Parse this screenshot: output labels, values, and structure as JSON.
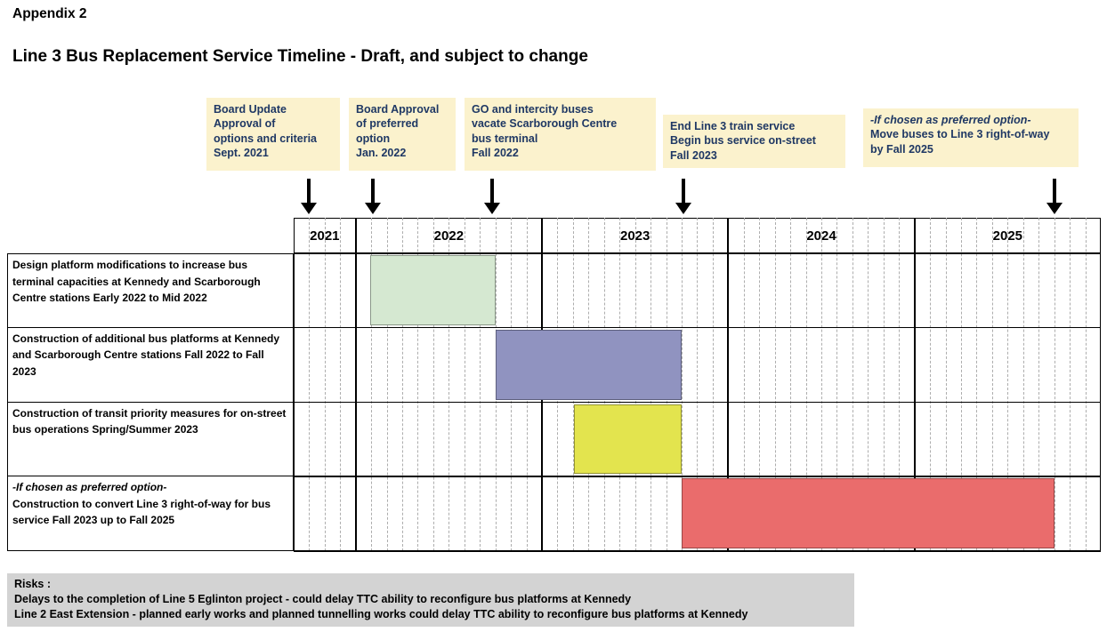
{
  "page": {
    "appendix": "Appendix 2",
    "title": "Line 3 Bus Replacement Service Timeline - Draft, and subject to change"
  },
  "colors": {
    "callout_bg": "#FBF2CD",
    "callout_text": "#1F3864",
    "risks_bg": "#D3D3D3"
  },
  "callouts": [
    {
      "text": "Board Update\nApproval of\noptions and criteria\nSept. 2021"
    },
    {
      "text": "Board Approval\nof preferred\noption\nJan. 2022"
    },
    {
      "text": "GO and intercity buses\nvacate Scarborough Centre\nbus terminal\nFall 2022"
    },
    {
      "text": "End Line 3 train service\nBegin bus service on-street\nFall 2023"
    },
    {
      "italic_line": "-If chosen as preferred option-",
      "text": "Move buses to Line 3 right-of-way\nby Fall 2025"
    }
  ],
  "chart_data": {
    "type": "bar",
    "variant": "gantt-timeline",
    "title": "Line 3 Bus Replacement Service Timeline - Draft, and subject to change",
    "timeline": {
      "start": 2021.667,
      "end": 2026.0,
      "unit": "years",
      "grid": "monthly dashed lines, yearly solid lines"
    },
    "years": [
      "2021",
      "2022",
      "2023",
      "2024",
      "2025"
    ],
    "tasks": [
      {
        "label": "Design platform modifications to increase bus terminal capacities at Kennedy and Scarborough Centre stations Early 2022 to Mid 2022",
        "start_label": "Early 2022",
        "end_label": "Mid 2022",
        "start": 2022.08,
        "end": 2022.75,
        "color": "#D5E8D1"
      },
      {
        "label": "Construction of additional bus platforms at Kennedy and Scarborough Centre stations Fall 2022 to Fall 2023",
        "start_label": "Fall 2022",
        "end_label": "Fall 2023",
        "start": 2022.75,
        "end": 2023.75,
        "color": "#9093C0"
      },
      {
        "label": "Construction of transit priority measures for on-street bus operations Spring/Summer 2023",
        "start_label": "Spring 2023",
        "end_label": "Summer 2023",
        "start": 2023.17,
        "end": 2023.75,
        "color": "#E3E44E"
      },
      {
        "label_italic": "-If chosen as preferred option-",
        "label": "Construction to convert Line 3 right-of-way for bus service Fall 2023 up to Fall 2025",
        "start_label": "Fall 2023",
        "end_label": "Fall 2025",
        "start": 2023.75,
        "end": 2025.75,
        "color": "#EA6C6C"
      }
    ],
    "milestones": [
      {
        "t": 2021.75,
        "label": "Board Update Approval of options and criteria Sept. 2021"
      },
      {
        "t": 2022.09,
        "label": "Board Approval of preferred option Jan. 2022"
      },
      {
        "t": 2022.73,
        "label": "GO and intercity buses vacate Scarborough Centre bus terminal Fall 2022"
      },
      {
        "t": 2023.76,
        "label": "End Line 3 train service Begin bus service on-street Fall 2023"
      },
      {
        "t": 2025.75,
        "label": "-If chosen as preferred option- Move buses to Line 3 right-of-way by Fall 2025"
      }
    ]
  },
  "risks": {
    "heading": "Risks :",
    "items": [
      "Delays to the completion of Line 5 Eglinton project - could delay TTC ability to reconfigure bus platforms at Kennedy",
      "Line 2 East Extension - planned early works and planned tunnelling works could delay TTC ability to reconfigure bus platforms at Kennedy"
    ]
  }
}
